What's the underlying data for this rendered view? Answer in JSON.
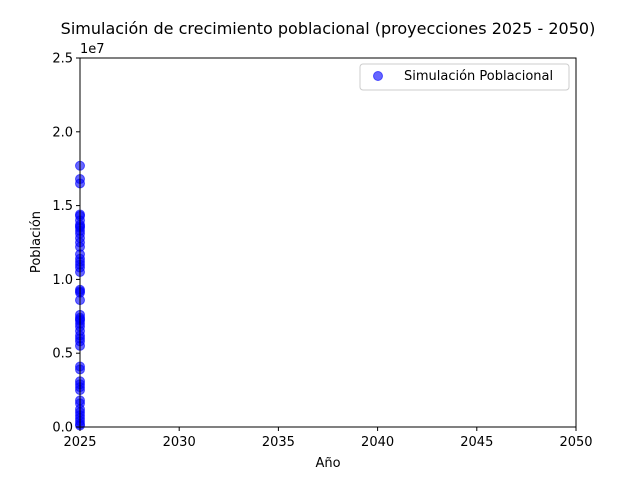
{
  "chart_data": {
    "type": "scatter",
    "title": "Simulación de crecimiento poblacional (proyecciones 2025 - 2050)",
    "xlabel": "Año",
    "ylabel": "Población",
    "y_offset_label": "1e7",
    "xlim": [
      2025,
      2050
    ],
    "ylim": [
      0,
      25000000
    ],
    "x_ticks": [
      2025,
      2030,
      2035,
      2040,
      2045,
      2050
    ],
    "x_tick_labels": [
      "2025",
      "2030",
      "2035",
      "2040",
      "2045",
      "2050"
    ],
    "y_ticks": [
      0,
      5000000,
      10000000,
      15000000,
      20000000,
      25000000
    ],
    "y_tick_labels": [
      "0.0",
      "0.5",
      "1.0",
      "1.5",
      "2.0",
      "2.5"
    ],
    "grid": false,
    "legend_position": "top-right",
    "series": [
      {
        "name": "Simulación Poblacional",
        "color": "#0000ff",
        "opacity": 0.6,
        "x": [
          2025,
          2025,
          2025,
          2025,
          2025,
          2025,
          2025,
          2025,
          2025,
          2025,
          2025,
          2025,
          2025,
          2025,
          2025,
          2025,
          2025,
          2025,
          2025,
          2025,
          2025,
          2025,
          2025,
          2025,
          2025,
          2025,
          2025,
          2025,
          2025,
          2025,
          2025,
          2025,
          2025,
          2025,
          2025,
          2025,
          2025,
          2025,
          2025,
          2025,
          2025,
          2025,
          2025,
          2025,
          2025,
          2025,
          2025,
          2025,
          2025,
          2025
        ],
        "y": [
          17700000,
          16800000,
          16500000,
          14400000,
          14300000,
          14000000,
          13700000,
          13500000,
          13300000,
          13100000,
          12800000,
          12500000,
          12200000,
          11700000,
          11200000,
          11000000,
          10800000,
          10500000,
          9200000,
          9100000,
          8600000,
          7600000,
          7400000,
          7200000,
          7000000,
          6800000,
          6500000,
          6200000,
          5800000,
          5500000,
          4100000,
          3900000,
          3100000,
          2900000,
          2700000,
          2500000,
          1800000,
          1600000,
          1200000,
          1000000,
          800000,
          600000,
          400000,
          200000,
          100000,
          13600000,
          11400000,
          9300000,
          7300000,
          6000000
        ]
      }
    ]
  }
}
